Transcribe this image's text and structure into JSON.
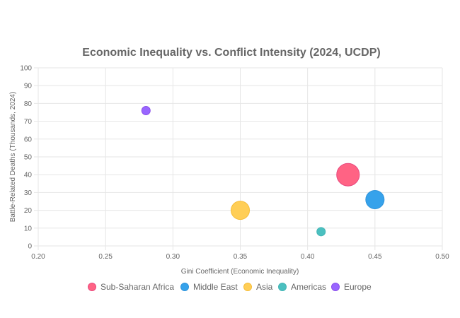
{
  "chart_data": {
    "type": "scatter",
    "subtype": "bubble",
    "title": "Economic Inequality vs. Conflict Intensity (2024, UCDP)",
    "xlabel": "Gini Coefficient (Economic Inequality)",
    "ylabel": "Battle-Related Deaths (Thousands, 2024)",
    "xlim": [
      0.2,
      0.5
    ],
    "ylim": [
      0,
      100
    ],
    "x_ticks": [
      "0.20",
      "0.25",
      "0.30",
      "0.35",
      "0.40",
      "0.45",
      "0.50"
    ],
    "x_tick_values": [
      0.2,
      0.25,
      0.3,
      0.35,
      0.4,
      0.45,
      0.5
    ],
    "y_ticks": [
      "0",
      "10",
      "20",
      "30",
      "40",
      "50",
      "60",
      "70",
      "80",
      "90",
      "100"
    ],
    "y_tick_values": [
      0,
      10,
      20,
      30,
      40,
      50,
      60,
      70,
      80,
      90,
      100
    ],
    "grid": true,
    "legend_position": "bottom",
    "series": [
      {
        "name": "Sub-Saharan Africa",
        "color": "#FF6384",
        "border": "#E84A7F",
        "points": [
          {
            "x": 0.43,
            "y": 40,
            "r": 16
          }
        ]
      },
      {
        "name": "Middle East",
        "color": "#36A2EB",
        "border": "#2F93DA",
        "points": [
          {
            "x": 0.45,
            "y": 26,
            "r": 13
          }
        ]
      },
      {
        "name": "Asia",
        "color": "#FFCE56",
        "border": "#F5BD3A",
        "points": [
          {
            "x": 0.35,
            "y": 20,
            "r": 13
          }
        ]
      },
      {
        "name": "Americas",
        "color": "#4BC0C0",
        "border": "#45B5B5",
        "points": [
          {
            "x": 0.41,
            "y": 8,
            "r": 6
          }
        ]
      },
      {
        "name": "Europe",
        "color": "#9966FF",
        "border": "#8A4FEA",
        "points": [
          {
            "x": 0.28,
            "y": 76,
            "r": 6
          }
        ]
      }
    ]
  }
}
